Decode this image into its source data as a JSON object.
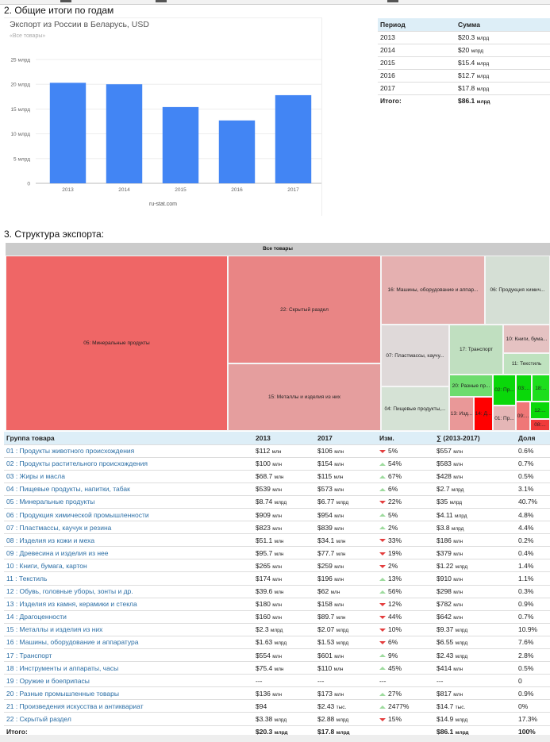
{
  "section2_title": "2. Общие итоги по годам",
  "section3_title": "3. Структура экспорта:",
  "chart_data": {
    "type": "bar",
    "title": "Экспорт из России в Беларусь, USD",
    "subtitle": "«Все товары»",
    "footer": "ru-stat.com",
    "categories": [
      "2013",
      "2014",
      "2015",
      "2016",
      "2017"
    ],
    "values": [
      20.3,
      20.0,
      15.4,
      12.7,
      17.8
    ],
    "units": "млрд USD",
    "ylim": [
      0,
      25
    ],
    "yticks": [
      0,
      5,
      10,
      15,
      20,
      25
    ],
    "ytick_labels": [
      "0",
      "5 млрд",
      "10 млрд",
      "15 млрд",
      "20 млрд",
      "25 млрд"
    ],
    "xlabel": "",
    "ylabel": "",
    "grid": true,
    "bar_color": "#4285f4"
  },
  "summary_table": {
    "headers": [
      "Период",
      "Сумма"
    ],
    "rows": [
      {
        "period": "2013",
        "value": "$20.3",
        "unit": "млрд"
      },
      {
        "period": "2014",
        "value": "$20",
        "unit": "млрд"
      },
      {
        "period": "2015",
        "value": "$15.4",
        "unit": "млрд"
      },
      {
        "period": "2016",
        "value": "$12.7",
        "unit": "млрд"
      },
      {
        "period": "2017",
        "value": "$17.8",
        "unit": "млрд"
      }
    ],
    "total": {
      "label": "Итого:",
      "value": "$86.1",
      "unit": "млрд"
    }
  },
  "treemap": {
    "root_label": "Все товары",
    "cells": [
      {
        "label": "05: Минеральные продукты",
        "color": "#ef6666"
      },
      {
        "label": "22: Скрытый раздел",
        "color": "#e98585"
      },
      {
        "label": "15: Металлы и изделия из них",
        "color": "#e59e9e"
      },
      {
        "label": "16: Машины, оборудование и аппар...",
        "color": "#e5b0b0"
      },
      {
        "label": "06: Продукция химич...",
        "color": "#d5dfd5"
      },
      {
        "label": "07: Пластмассы, каучу...",
        "color": "#dfd9d9"
      },
      {
        "label": "17: Транспорт",
        "color": "#c0dfc0"
      },
      {
        "label": "10: Книги, бума...",
        "color": "#e5c2c2"
      },
      {
        "label": "11: Текстиль",
        "color": "#bfe2bf"
      },
      {
        "label": "04: Пищевые продукты,...",
        "color": "#d5e2d5"
      },
      {
        "label": "20: Разные пр...",
        "color": "#6edc6e"
      },
      {
        "label": "02: Пр...",
        "color": "#0ad80a"
      },
      {
        "label": "03:...",
        "color": "#0ad80a"
      },
      {
        "label": "18:...",
        "color": "#1dde1d"
      },
      {
        "label": "13: Изд...",
        "color": "#e99898"
      },
      {
        "label": "14: Д...",
        "color": "#ff0000"
      },
      {
        "label": "01: Пр...",
        "color": "#e5b6b6"
      },
      {
        "label": "09:...",
        "color": "#ef7777"
      },
      {
        "label": "12:...",
        "color": "#0ad80a"
      },
      {
        "label": "08:...",
        "color": "#f03a3a"
      }
    ]
  },
  "main_table": {
    "headers": [
      "Группа товара",
      "2013",
      "2017",
      "Изм.",
      "∑ (2013-2017)",
      "Доля"
    ],
    "rows": [
      {
        "group": "01 : Продукты животного происхождения",
        "y2013": "$112",
        "u2013": "млн",
        "y2017": "$106",
        "u2017": "млн",
        "dir": "down",
        "change": "5%",
        "sum": "$557",
        "usum": "млн",
        "share": "0.6%"
      },
      {
        "group": "02 : Продукты растительного происхождения",
        "y2013": "$100",
        "u2013": "млн",
        "y2017": "$154",
        "u2017": "млн",
        "dir": "up",
        "change": "54%",
        "sum": "$583",
        "usum": "млн",
        "share": "0.7%"
      },
      {
        "group": "03 : Жиры и масла",
        "y2013": "$68.7",
        "u2013": "млн",
        "y2017": "$115",
        "u2017": "млн",
        "dir": "up",
        "change": "67%",
        "sum": "$428",
        "usum": "млн",
        "share": "0.5%"
      },
      {
        "group": "04 : Пищевые продукты, напитки, табак",
        "y2013": "$539",
        "u2013": "млн",
        "y2017": "$573",
        "u2017": "млн",
        "dir": "up",
        "change": "6%",
        "sum": "$2.7",
        "usum": "млрд",
        "share": "3.1%"
      },
      {
        "group": "05 : Минеральные продукты",
        "y2013": "$8.74",
        "u2013": "млрд",
        "y2017": "$6.77",
        "u2017": "млрд",
        "dir": "down",
        "change": "22%",
        "sum": "$35",
        "usum": "млрд",
        "share": "40.7%"
      },
      {
        "group": "06 : Продукция химической промышленности",
        "y2013": "$909",
        "u2013": "млн",
        "y2017": "$954",
        "u2017": "млн",
        "dir": "up",
        "change": "5%",
        "sum": "$4.11",
        "usum": "млрд",
        "share": "4.8%"
      },
      {
        "group": "07 : Пластмассы, каучук и резина",
        "y2013": "$823",
        "u2013": "млн",
        "y2017": "$839",
        "u2017": "млн",
        "dir": "up",
        "change": "2%",
        "sum": "$3.8",
        "usum": "млрд",
        "share": "4.4%"
      },
      {
        "group": "08 : Изделия из кожи и меха",
        "y2013": "$51.1",
        "u2013": "млн",
        "y2017": "$34.1",
        "u2017": "млн",
        "dir": "down",
        "change": "33%",
        "sum": "$186",
        "usum": "млн",
        "share": "0.2%"
      },
      {
        "group": "09 : Древесина и изделия из нее",
        "y2013": "$95.7",
        "u2013": "млн",
        "y2017": "$77.7",
        "u2017": "млн",
        "dir": "down",
        "change": "19%",
        "sum": "$379",
        "usum": "млн",
        "share": "0.4%"
      },
      {
        "group": "10 : Книги, бумага, картон",
        "y2013": "$265",
        "u2013": "млн",
        "y2017": "$259",
        "u2017": "млн",
        "dir": "down",
        "change": "2%",
        "sum": "$1.22",
        "usum": "млрд",
        "share": "1.4%"
      },
      {
        "group": "11 : Текстиль",
        "y2013": "$174",
        "u2013": "млн",
        "y2017": "$196",
        "u2017": "млн",
        "dir": "up",
        "change": "13%",
        "sum": "$910",
        "usum": "млн",
        "share": "1.1%"
      },
      {
        "group": "12 : Обувь, головные уборы, зонты и др.",
        "y2013": "$39.6",
        "u2013": "млн",
        "y2017": "$62",
        "u2017": "млн",
        "dir": "up",
        "change": "56%",
        "sum": "$298",
        "usum": "млн",
        "share": "0.3%"
      },
      {
        "group": "13 : Изделия из камня, керамики и стекла",
        "y2013": "$180",
        "u2013": "млн",
        "y2017": "$158",
        "u2017": "млн",
        "dir": "down",
        "change": "12%",
        "sum": "$782",
        "usum": "млн",
        "share": "0.9%"
      },
      {
        "group": "14 : Драгоценности",
        "y2013": "$160",
        "u2013": "млн",
        "y2017": "$89.7",
        "u2017": "млн",
        "dir": "down",
        "change": "44%",
        "sum": "$642",
        "usum": "млн",
        "share": "0.7%"
      },
      {
        "group": "15 : Металлы и изделия из них",
        "y2013": "$2.3",
        "u2013": "млрд",
        "y2017": "$2.07",
        "u2017": "млрд",
        "dir": "down",
        "change": "10%",
        "sum": "$9.37",
        "usum": "млрд",
        "share": "10.9%"
      },
      {
        "group": "16 : Машины, оборудование и аппаратура",
        "y2013": "$1.63",
        "u2013": "млрд",
        "y2017": "$1.53",
        "u2017": "млрд",
        "dir": "down",
        "change": "6%",
        "sum": "$6.55",
        "usum": "млрд",
        "share": "7.6%"
      },
      {
        "group": "17 : Транспорт",
        "y2013": "$554",
        "u2013": "млн",
        "y2017": "$601",
        "u2017": "млн",
        "dir": "up",
        "change": "9%",
        "sum": "$2.43",
        "usum": "млрд",
        "share": "2.8%"
      },
      {
        "group": "18 : Инструменты и аппараты, часы",
        "y2013": "$75.4",
        "u2013": "млн",
        "y2017": "$110",
        "u2017": "млн",
        "dir": "up",
        "change": "45%",
        "sum": "$414",
        "usum": "млн",
        "share": "0.5%"
      },
      {
        "group": "19 : Оружие и боеприпасы",
        "y2013": "---",
        "u2013": "",
        "y2017": "---",
        "u2017": "",
        "dir": "none",
        "change": "---",
        "sum": "---",
        "usum": "",
        "share": "0"
      },
      {
        "group": "20 : Разные промышленные товары",
        "y2013": "$136",
        "u2013": "млн",
        "y2017": "$173",
        "u2017": "млн",
        "dir": "up",
        "change": "27%",
        "sum": "$817",
        "usum": "млн",
        "share": "0.9%"
      },
      {
        "group": "21 : Произведения искусства и антиквариат",
        "y2013": "$94",
        "u2013": "",
        "y2017": "$2.43",
        "u2017": "тыс.",
        "dir": "up",
        "change": "2477%",
        "sum": "$14.7",
        "usum": "тыс.",
        "share": "0%"
      },
      {
        "group": "22 : Скрытый раздел",
        "y2013": "$3.38",
        "u2013": "млрд",
        "y2017": "$2.88",
        "u2017": "млрд",
        "dir": "down",
        "change": "15%",
        "sum": "$14.9",
        "usum": "млрд",
        "share": "17.3%"
      }
    ],
    "total": {
      "label": "Итого:",
      "y2013": "$20.3",
      "u2013": "млрд",
      "y2017": "$17.8",
      "u2017": "млрд",
      "sum": "$86.1",
      "usum": "млрд",
      "share": "100%"
    }
  }
}
